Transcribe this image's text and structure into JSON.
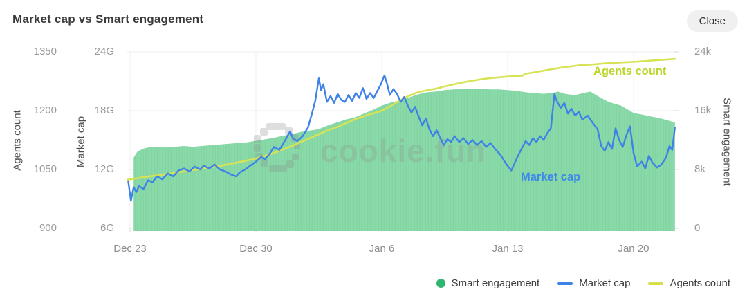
{
  "header": {
    "title": "Market cap vs Smart engagement",
    "close_label": "Close"
  },
  "watermark": {
    "text": "cookie.fun"
  },
  "axes": {
    "left_outer": {
      "title": "Agents count",
      "ticks": [
        "1350",
        "1200",
        "1050",
        "900"
      ]
    },
    "left_inner": {
      "title": "Market cap",
      "ticks": [
        "24G",
        "18G",
        "12G",
        "6G"
      ]
    },
    "right": {
      "title": "Smart engagement",
      "ticks": [
        "24k",
        "16k",
        "8k",
        "0"
      ]
    },
    "x": {
      "ticks": [
        "Dec 23",
        "Dec 30",
        "Jan 6",
        "Jan 13",
        "Jan 20"
      ]
    }
  },
  "inline_labels": {
    "market_cap": "Market cap",
    "agents_count": "Agents count"
  },
  "legend": [
    {
      "label": "Smart engagement",
      "marker": "dot",
      "color": "#2eb572"
    },
    {
      "label": "Market cap",
      "marker": "dash",
      "color": "#3e82e8"
    },
    {
      "label": "Agents count",
      "marker": "dash",
      "color": "#d2e04c"
    }
  ],
  "colors": {
    "area_green": "#89d9a9",
    "area_green_stripe": "#83d4a3",
    "line_blue": "#3e82e8",
    "line_lime": "#d7e354",
    "label_blue": "#3f87ea",
    "label_lime": "#bdd52c",
    "grid": "#ececec",
    "grid_vert": "#f1f1f1",
    "tick_mark": "#d9d9d9"
  },
  "chart_data": {
    "type": "mixed",
    "title": "Market cap vs Smart engagement",
    "x_unit": "days since Dec 23",
    "x_tick_days": [
      0,
      7,
      14,
      21,
      28
    ],
    "x_tick_labels": [
      "Dec 23",
      "Dec 30",
      "Jan 6",
      "Jan 13",
      "Jan 20"
    ],
    "axis_ranges": {
      "agents_count": [
        900,
        1350
      ],
      "market_cap_G": [
        6,
        24
      ],
      "smart_engagement_k": [
        0,
        24
      ]
    },
    "grid": "horizontal",
    "legend_position": "bottom-right",
    "series": [
      {
        "name": "Smart engagement",
        "type": "area",
        "axis": "smart_engagement_k",
        "unit": "k",
        "points": [
          [
            0.2,
            9.6
          ],
          [
            0.4,
            10.4
          ],
          [
            0.7,
            10.8
          ],
          [
            1.0,
            11.0
          ],
          [
            1.5,
            11.1
          ],
          [
            2.0,
            11.0
          ],
          [
            2.5,
            11.1
          ],
          [
            3.0,
            11.2
          ],
          [
            3.5,
            11.1
          ],
          [
            4.0,
            11.2
          ],
          [
            4.5,
            11.3
          ],
          [
            5.0,
            11.4
          ],
          [
            5.5,
            11.5
          ],
          [
            6.0,
            11.6
          ],
          [
            6.5,
            11.7
          ],
          [
            7.0,
            11.9
          ],
          [
            7.5,
            12.1
          ],
          [
            8.0,
            12.3
          ],
          [
            8.5,
            12.6
          ],
          [
            9.0,
            12.8
          ],
          [
            9.5,
            13.1
          ],
          [
            10.0,
            13.3
          ],
          [
            10.5,
            13.5
          ],
          [
            11.0,
            14.0
          ],
          [
            11.5,
            14.4
          ],
          [
            12.0,
            14.8
          ],
          [
            12.5,
            15.1
          ],
          [
            13.0,
            15.6
          ],
          [
            13.5,
            16.1
          ],
          [
            14.0,
            16.7
          ],
          [
            14.5,
            17.1
          ],
          [
            15.0,
            17.4
          ],
          [
            15.5,
            17.8
          ],
          [
            16.0,
            18.2
          ],
          [
            16.5,
            18.5
          ],
          [
            17.0,
            18.6
          ],
          [
            17.5,
            18.8
          ],
          [
            18.0,
            18.9
          ],
          [
            18.5,
            19.0
          ],
          [
            19.0,
            19.0
          ],
          [
            19.5,
            19.0
          ],
          [
            20.0,
            18.9
          ],
          [
            20.5,
            18.9
          ],
          [
            21.0,
            18.8
          ],
          [
            21.5,
            18.7
          ],
          [
            22.0,
            18.5
          ],
          [
            22.5,
            18.4
          ],
          [
            23.0,
            18.3
          ],
          [
            23.5,
            18.4
          ],
          [
            23.8,
            18.6
          ],
          [
            24.2,
            18.3
          ],
          [
            24.7,
            18.1
          ],
          [
            25.2,
            18.4
          ],
          [
            25.6,
            18.6
          ],
          [
            26.0,
            18.0
          ],
          [
            26.6,
            17.2
          ],
          [
            27.3,
            16.7
          ],
          [
            28.0,
            15.7
          ],
          [
            28.8,
            15.3
          ],
          [
            29.6,
            14.9
          ],
          [
            30.3,
            14.4
          ]
        ]
      },
      {
        "name": "Market cap",
        "type": "line",
        "axis": "market_cap_G",
        "unit": "G",
        "points": [
          [
            -0.1,
            10.8
          ],
          [
            0.05,
            8.8
          ],
          [
            0.2,
            10.2
          ],
          [
            0.35,
            9.7
          ],
          [
            0.5,
            10.3
          ],
          [
            0.75,
            10.0
          ],
          [
            1.0,
            10.9
          ],
          [
            1.25,
            10.7
          ],
          [
            1.5,
            11.3
          ],
          [
            1.8,
            11.0
          ],
          [
            2.1,
            11.6
          ],
          [
            2.4,
            11.3
          ],
          [
            2.7,
            11.9
          ],
          [
            3.0,
            12.1
          ],
          [
            3.3,
            11.8
          ],
          [
            3.6,
            12.3
          ],
          [
            3.9,
            12.0
          ],
          [
            4.1,
            12.4
          ],
          [
            4.4,
            12.1
          ],
          [
            4.7,
            12.5
          ],
          [
            5.0,
            12.0
          ],
          [
            5.3,
            11.8
          ],
          [
            5.6,
            11.5
          ],
          [
            5.9,
            11.3
          ],
          [
            6.1,
            11.7
          ],
          [
            6.4,
            12.0
          ],
          [
            6.7,
            12.4
          ],
          [
            7.0,
            12.8
          ],
          [
            7.3,
            13.3
          ],
          [
            7.5,
            13.0
          ],
          [
            7.8,
            13.7
          ],
          [
            8.0,
            14.3
          ],
          [
            8.3,
            14.0
          ],
          [
            8.6,
            14.9
          ],
          [
            8.9,
            15.9
          ],
          [
            9.05,
            15.2
          ],
          [
            9.3,
            14.9
          ],
          [
            9.6,
            15.4
          ],
          [
            9.9,
            16.3
          ],
          [
            10.1,
            17.6
          ],
          [
            10.3,
            19.0
          ],
          [
            10.5,
            21.3
          ],
          [
            10.62,
            20.1
          ],
          [
            10.75,
            20.7
          ],
          [
            10.95,
            18.9
          ],
          [
            11.15,
            19.5
          ],
          [
            11.35,
            18.8
          ],
          [
            11.55,
            19.7
          ],
          [
            11.75,
            19.1
          ],
          [
            11.95,
            18.9
          ],
          [
            12.15,
            19.6
          ],
          [
            12.35,
            19.0
          ],
          [
            12.55,
            19.8
          ],
          [
            12.75,
            19.3
          ],
          [
            12.95,
            20.3
          ],
          [
            13.15,
            19.2
          ],
          [
            13.35,
            19.8
          ],
          [
            13.55,
            19.3
          ],
          [
            13.75,
            20.0
          ],
          [
            13.95,
            20.7
          ],
          [
            14.15,
            21.6
          ],
          [
            14.3,
            20.7
          ],
          [
            14.45,
            19.6
          ],
          [
            14.65,
            20.2
          ],
          [
            14.85,
            19.7
          ],
          [
            15.05,
            18.9
          ],
          [
            15.25,
            19.4
          ],
          [
            15.45,
            18.5
          ],
          [
            15.65,
            17.8
          ],
          [
            15.85,
            18.4
          ],
          [
            16.05,
            17.4
          ],
          [
            16.25,
            16.5
          ],
          [
            16.45,
            17.2
          ],
          [
            16.65,
            16.1
          ],
          [
            16.85,
            15.4
          ],
          [
            17.05,
            16.0
          ],
          [
            17.25,
            15.2
          ],
          [
            17.45,
            14.5
          ],
          [
            17.65,
            15.1
          ],
          [
            17.85,
            14.8
          ],
          [
            18.05,
            15.4
          ],
          [
            18.3,
            14.8
          ],
          [
            18.55,
            15.2
          ],
          [
            18.8,
            14.6
          ],
          [
            19.05,
            15.0
          ],
          [
            19.3,
            14.5
          ],
          [
            19.55,
            14.9
          ],
          [
            19.8,
            14.3
          ],
          [
            20.05,
            14.7
          ],
          [
            20.3,
            14.1
          ],
          [
            20.6,
            13.5
          ],
          [
            20.9,
            12.6
          ],
          [
            21.2,
            11.9
          ],
          [
            21.4,
            12.7
          ],
          [
            21.6,
            13.5
          ],
          [
            21.8,
            14.2
          ],
          [
            22.0,
            14.9
          ],
          [
            22.2,
            14.5
          ],
          [
            22.4,
            15.2
          ],
          [
            22.6,
            14.8
          ],
          [
            22.8,
            15.4
          ],
          [
            23.0,
            15.0
          ],
          [
            23.2,
            15.7
          ],
          [
            23.4,
            16.2
          ],
          [
            23.6,
            19.7
          ],
          [
            23.75,
            18.9
          ],
          [
            23.95,
            18.3
          ],
          [
            24.15,
            18.8
          ],
          [
            24.35,
            17.7
          ],
          [
            24.55,
            18.2
          ],
          [
            24.75,
            17.5
          ],
          [
            24.95,
            17.9
          ],
          [
            25.15,
            17.1
          ],
          [
            25.45,
            17.5
          ],
          [
            25.75,
            16.7
          ],
          [
            26.0,
            16.1
          ],
          [
            26.2,
            14.4
          ],
          [
            26.4,
            13.9
          ],
          [
            26.6,
            14.8
          ],
          [
            26.8,
            14.1
          ],
          [
            27.0,
            16.2
          ],
          [
            27.2,
            15.0
          ],
          [
            27.4,
            14.3
          ],
          [
            27.6,
            15.5
          ],
          [
            27.8,
            16.4
          ],
          [
            28.0,
            13.7
          ],
          [
            28.2,
            12.3
          ],
          [
            28.45,
            12.8
          ],
          [
            28.65,
            12.1
          ],
          [
            28.85,
            13.4
          ],
          [
            29.05,
            12.7
          ],
          [
            29.3,
            12.2
          ],
          [
            29.55,
            12.5
          ],
          [
            29.8,
            13.2
          ],
          [
            30.0,
            14.4
          ],
          [
            30.15,
            14.0
          ],
          [
            30.3,
            16.3
          ]
        ]
      },
      {
        "name": "Agents count",
        "type": "line",
        "axis": "agents_count",
        "unit": "agents",
        "points": [
          [
            -0.15,
            1024
          ],
          [
            0,
            1025
          ],
          [
            1,
            1032
          ],
          [
            2,
            1038
          ],
          [
            3,
            1045
          ],
          [
            4,
            1052
          ],
          [
            5,
            1059
          ],
          [
            6,
            1068
          ],
          [
            7,
            1078
          ],
          [
            8,
            1092
          ],
          [
            9,
            1110
          ],
          [
            9.7,
            1124
          ],
          [
            10.5,
            1140
          ],
          [
            11,
            1150
          ],
          [
            11.5,
            1158
          ],
          [
            12,
            1168
          ],
          [
            12.5,
            1178
          ],
          [
            13,
            1186
          ],
          [
            13.5,
            1193
          ],
          [
            14,
            1200
          ],
          [
            14.5,
            1212
          ],
          [
            15,
            1226
          ],
          [
            15.5,
            1238
          ],
          [
            16,
            1247
          ],
          [
            16.5,
            1252
          ],
          [
            17,
            1256
          ],
          [
            17.5,
            1262
          ],
          [
            18,
            1267
          ],
          [
            18.5,
            1272
          ],
          [
            19,
            1276
          ],
          [
            19.5,
            1280
          ],
          [
            20,
            1283
          ],
          [
            20.5,
            1285
          ],
          [
            21,
            1287
          ],
          [
            21.3,
            1288
          ],
          [
            21.8,
            1289
          ],
          [
            22,
            1294
          ],
          [
            22.5,
            1298
          ],
          [
            23,
            1302
          ],
          [
            23.5,
            1306
          ],
          [
            24,
            1310
          ],
          [
            24.5,
            1313
          ],
          [
            25,
            1316
          ],
          [
            25.8,
            1318
          ],
          [
            26.5,
            1321
          ],
          [
            27.3,
            1323
          ],
          [
            28.2,
            1325
          ],
          [
            29,
            1328
          ],
          [
            29.7,
            1330
          ],
          [
            30.3,
            1332
          ]
        ]
      }
    ]
  }
}
